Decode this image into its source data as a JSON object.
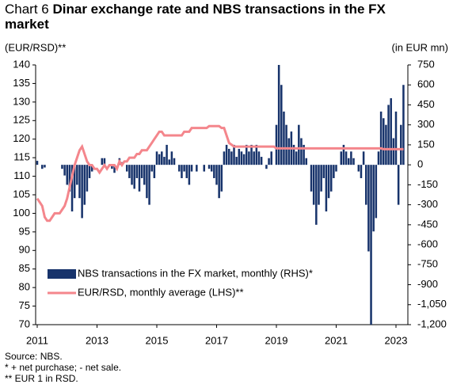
{
  "chart_data": {
    "type": "bar-line",
    "chart_label": "Chart 6",
    "title": "Dinar exchange rate and NBS transactions in the FX market",
    "ylabel": "(EUR/RSD)**",
    "y2label": "(in EUR mn)",
    "notes": [
      "Source: NBS.",
      "*  + net purchase; - net sale.",
      "** EUR  1 in RSD."
    ],
    "categories": [
      "2011",
      null,
      null,
      null,
      null,
      null,
      null,
      null,
      null,
      null,
      null,
      null,
      null,
      null,
      null,
      null,
      null,
      null,
      null,
      null,
      null,
      null,
      null,
      null,
      "2013",
      null,
      null,
      null,
      null,
      null,
      null,
      null,
      null,
      null,
      null,
      null,
      null,
      null,
      null,
      null,
      null,
      null,
      null,
      null,
      null,
      null,
      null,
      null,
      "2015",
      null,
      null,
      null,
      null,
      null,
      null,
      null,
      null,
      null,
      null,
      null,
      null,
      null,
      null,
      null,
      null,
      null,
      null,
      null,
      null,
      null,
      null,
      null,
      "2017",
      null,
      null,
      null,
      null,
      null,
      null,
      null,
      null,
      null,
      null,
      null,
      null,
      null,
      null,
      null,
      null,
      null,
      null,
      null,
      null,
      null,
      null,
      null,
      "2019",
      null,
      null,
      null,
      null,
      null,
      null,
      null,
      null,
      null,
      null,
      null,
      null,
      null,
      null,
      null,
      null,
      null,
      null,
      null,
      null,
      null,
      null,
      null,
      "2021",
      null,
      null,
      null,
      null,
      null,
      null,
      null,
      null,
      null,
      null,
      null,
      null,
      null,
      null,
      null,
      null,
      null,
      null,
      null,
      null,
      null,
      null,
      null,
      "2023",
      null,
      null,
      null
    ],
    "series": [
      {
        "name": "NBS transactions in the FX market, monthly (RHS)*",
        "color": "#17336b",
        "kind": "bar",
        "axis": "y2",
        "values": [
          30,
          0,
          -30,
          -20,
          0,
          0,
          0,
          0,
          0,
          0,
          -30,
          -80,
          -150,
          -200,
          -350,
          -250,
          -150,
          -250,
          -400,
          -300,
          -200,
          -100,
          -50,
          0,
          0,
          0,
          50,
          50,
          0,
          0,
          -30,
          -60,
          0,
          50,
          20,
          0,
          -50,
          -100,
          -150,
          -180,
          -100,
          -200,
          -100,
          -150,
          -250,
          -300,
          -50,
          -100,
          100,
          80,
          100,
          60,
          150,
          40,
          100,
          50,
          0,
          -50,
          -100,
          -50,
          -100,
          -150,
          -50,
          0,
          -50,
          0,
          0,
          -50,
          0,
          -30,
          -50,
          -100,
          -150,
          -250,
          -200,
          100,
          150,
          120,
          100,
          150,
          60,
          120,
          100,
          80,
          150,
          100,
          150,
          100,
          150,
          100,
          60,
          0,
          -30,
          50,
          100,
          0,
          300,
          750,
          600,
          400,
          300,
          200,
          250,
          150,
          100,
          300,
          200,
          150,
          50,
          0,
          -200,
          -300,
          -450,
          -300,
          -200,
          -100,
          -350,
          -250,
          -200,
          -100,
          -50,
          0,
          100,
          150,
          100,
          50,
          100,
          50,
          0,
          -50,
          -100,
          100,
          -300,
          -650,
          -1200,
          -500,
          -400,
          100,
          400,
          350,
          300,
          450,
          500,
          200,
          400,
          -300,
          300,
          600
        ]
      },
      {
        "name": "EUR/RSD, monthly average (LHS)**",
        "color": "#f4868c",
        "kind": "line",
        "axis": "y",
        "values": [
          104,
          103,
          102,
          99,
          98,
          98,
          99,
          100,
          100,
          100,
          101,
          102,
          104,
          107,
          110,
          113,
          115,
          117,
          118,
          116,
          114,
          113,
          113,
          112,
          112,
          111,
          112,
          113,
          112,
          113,
          113,
          113,
          112,
          114,
          113,
          114,
          114,
          115,
          115,
          115,
          116,
          116,
          117,
          117,
          117,
          118,
          119,
          120,
          121,
          122,
          122,
          121,
          121,
          121,
          121,
          121,
          121,
          121,
          121,
          122,
          122,
          122,
          123,
          123,
          123,
          123,
          123,
          123,
          123,
          123.5,
          123.5,
          123.5,
          123.5,
          123.5,
          123,
          123,
          121,
          119,
          118.5,
          118,
          118,
          118,
          118,
          118,
          118,
          118,
          118,
          118,
          118,
          118,
          118,
          118,
          118,
          118,
          118,
          118,
          117.5,
          117.5,
          117.5,
          117.5,
          117.5,
          117.5,
          117.5,
          117.5,
          117.5,
          117.5,
          117.5,
          117.5,
          117.5,
          117.5,
          117.5,
          117.5,
          117.5,
          117.5,
          117.5,
          117.5,
          117.5,
          117.5,
          117.5,
          117.5,
          117.5,
          117.5,
          117.5,
          117.5,
          117.5,
          117.5,
          117.5,
          117.5,
          117.5,
          117.5,
          117.5,
          117.5,
          117.5,
          117.5,
          117.5,
          117.5,
          117.5,
          117.5,
          117.5,
          117.3,
          117.3,
          117.3,
          117.3,
          117.3,
          117.3,
          117.3,
          117.3,
          117.3
        ]
      }
    ],
    "ylim": [
      70,
      140
    ],
    "yticks": [
      70,
      75,
      80,
      85,
      90,
      95,
      100,
      105,
      110,
      115,
      120,
      125,
      130,
      135,
      140
    ],
    "y2lim": [
      -1200,
      750
    ],
    "y2ticks": [
      {
        "value": -1200,
        "label": "-1,200"
      },
      {
        "value": -1050,
        "label": "-1,050"
      },
      -900,
      -750,
      -600,
      -450,
      -300,
      -150,
      0,
      150,
      300,
      450,
      600,
      750
    ],
    "legend": "lower-left"
  }
}
